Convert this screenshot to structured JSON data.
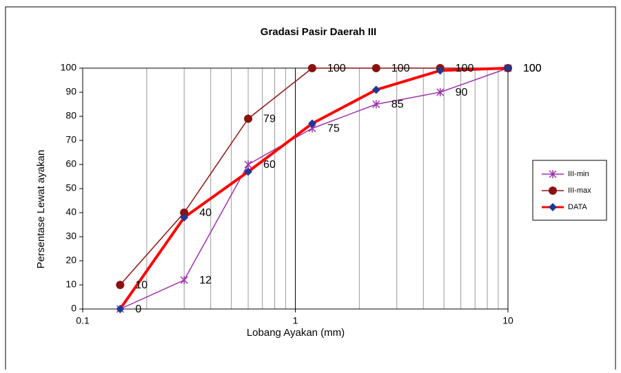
{
  "chart_data": {
    "type": "line",
    "title": "Gradasi Pasir Daerah III",
    "xlabel": "Lobang Ayakan (mm)",
    "ylabel": "Persentase Lewat ayakan",
    "x": [
      0.15,
      0.3,
      0.6,
      1.2,
      2.4,
      4.8,
      10
    ],
    "xscale": "log",
    "xlim": [
      0.1,
      10
    ],
    "xticks": [
      0.1,
      1,
      10
    ],
    "xminor": [
      0.2,
      0.3,
      0.4,
      0.5,
      0.6,
      0.7,
      0.8,
      0.9,
      2,
      3,
      4,
      5,
      6,
      7,
      8,
      9
    ],
    "ylim": [
      0,
      100
    ],
    "yticks": [
      0,
      10,
      20,
      30,
      40,
      50,
      60,
      70,
      80,
      90,
      100
    ],
    "legend": "right",
    "series": [
      {
        "name": "III-min",
        "color": "#9b30a8",
        "marker": "star",
        "width": 1.5,
        "data_labels": true,
        "values": [
          0,
          12,
          60,
          75,
          85,
          90,
          100
        ]
      },
      {
        "name": "III-max",
        "color": "#8b1010",
        "marker": "circle",
        "width": 1.5,
        "data_labels": true,
        "values": [
          10,
          40,
          79,
          100,
          100,
          100,
          100
        ]
      },
      {
        "name": "DATA",
        "color": "#ff0000",
        "marker": "diamond",
        "marker_color": "#1c3a94",
        "width": 4,
        "data_labels": false,
        "values": [
          0,
          38,
          57,
          77,
          91,
          99,
          100
        ]
      }
    ]
  }
}
